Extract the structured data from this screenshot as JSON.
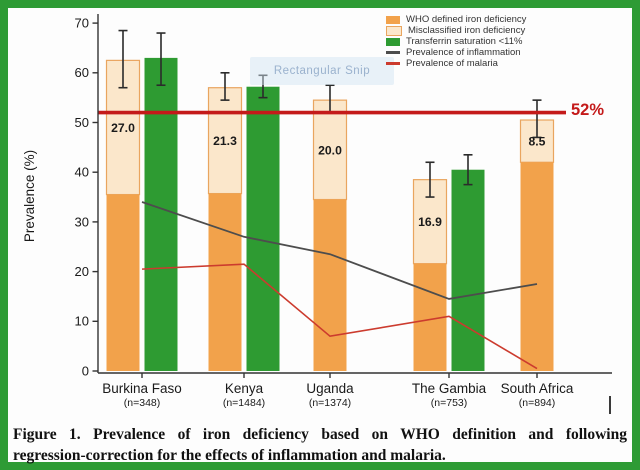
{
  "figure": {
    "border_color": "#2e9b35",
    "caption_line1": "Figure 1. Prevalence of iron deficiency based on WHO definition and following",
    "caption_line2": "regression-correction for the effects of inflammation and malaria."
  },
  "watermark": {
    "text": "Rectangular Snip"
  },
  "chart_data": {
    "type": "bar",
    "title": "",
    "xlabel": "",
    "ylabel": "Prevalence (%)",
    "ylim": [
      0,
      70
    ],
    "yticks": [
      0,
      10,
      20,
      30,
      40,
      50,
      60,
      70
    ],
    "grid": false,
    "legend_position": "top-right",
    "categories": [
      "Burkina Faso",
      "Kenya",
      "Uganda",
      "The Gambia",
      "South Africa"
    ],
    "sample_sizes": [
      "(n=348)",
      "(n=1484)",
      "(n=1374)",
      "(n=753)",
      "(n=894)"
    ],
    "series": [
      {
        "name": "WHO defined iron deficiency",
        "type": "bar-stack-bottom",
        "color": "#f2a24b",
        "values": [
          35.5,
          35.7,
          34.5,
          21.6,
          42.0
        ]
      },
      {
        "name": "Misclassified iron deficiency",
        "type": "bar-stack-top",
        "color": "#fbe7cb",
        "border": "#e9a55f",
        "values": [
          27.0,
          21.3,
          20.0,
          16.9,
          8.5
        ],
        "labels": [
          "27.0",
          "21.3",
          "20.0",
          "16.9",
          "8.5"
        ]
      },
      {
        "name": "Transferrin saturation <11%",
        "type": "bar",
        "color": "#2e9b32",
        "values": [
          63.0,
          57.2,
          null,
          40.5,
          null
        ]
      },
      {
        "name": "Prevalence of inflammation",
        "type": "line",
        "color": "#4d4d4d",
        "values": [
          34.0,
          27.0,
          23.5,
          14.5,
          17.5
        ]
      },
      {
        "name": "Prevalence of malaria",
        "type": "line",
        "color": "#cc3b2e",
        "values": [
          20.5,
          21.5,
          7.0,
          11.0,
          0.5
        ]
      }
    ],
    "error_bars": {
      "stacked_total": [
        [
          57.0,
          68.5
        ],
        [
          54.5,
          60.0
        ],
        [
          52.0,
          57.5
        ],
        [
          35.0,
          42.0
        ],
        [
          47.0,
          54.5
        ]
      ],
      "transferrin": [
        [
          57.5,
          68.0
        ],
        [
          55.0,
          59.5
        ],
        null,
        [
          37.5,
          43.5
        ],
        null
      ]
    },
    "reference_line": {
      "value": 52,
      "label": "52%",
      "color": "#c41a1a"
    }
  }
}
